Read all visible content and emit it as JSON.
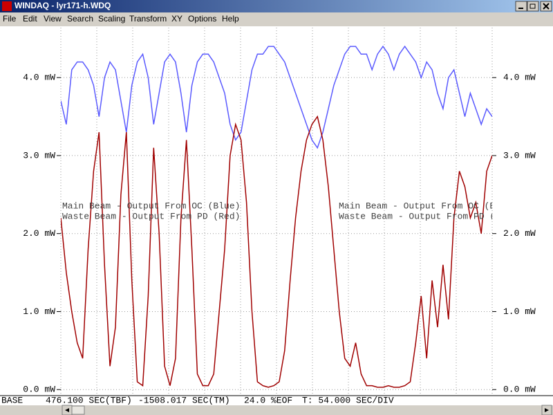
{
  "window": {
    "title": "WINDAQ - lyr171-h.WDQ"
  },
  "menu": [
    "File",
    "Edit",
    "View",
    "Search",
    "Scaling",
    "Transform",
    "XY",
    "Options",
    "Help"
  ],
  "chart_data": {
    "type": "line",
    "annotations": [
      "Main Beam - Output From OC (Blue)",
      "Waste Beam - Output From PD (Red)"
    ],
    "ylim": [
      -0.06,
      4.64
    ],
    "yticks": [
      {
        "value": 0,
        "label": "0.0 mW"
      },
      {
        "value": 1,
        "label": "1.0 mW"
      },
      {
        "value": 2,
        "label": "2.0 mW"
      },
      {
        "value": 3,
        "label": "3.0 mW"
      },
      {
        "value": 4,
        "label": "4.0 mW"
      }
    ],
    "grid": true,
    "series": [
      {
        "color": "#5a5aff",
        "values": [
          3.7,
          3.4,
          4.1,
          4.2,
          4.2,
          4.1,
          3.9,
          3.5,
          4.0,
          4.2,
          4.1,
          3.7,
          3.3,
          3.9,
          4.2,
          4.3,
          4.0,
          3.4,
          3.8,
          4.2,
          4.3,
          4.2,
          3.8,
          3.3,
          3.9,
          4.2,
          4.3,
          4.3,
          4.2,
          4.0,
          3.8,
          3.4,
          3.2,
          3.3,
          3.7,
          4.1,
          4.3,
          4.3,
          4.4,
          4.4,
          4.3,
          4.2,
          4.0,
          3.8,
          3.6,
          3.4,
          3.2,
          3.1,
          3.3,
          3.6,
          3.9,
          4.1,
          4.3,
          4.4,
          4.4,
          4.3,
          4.3,
          4.1,
          4.3,
          4.4,
          4.3,
          4.1,
          4.3,
          4.4,
          4.3,
          4.2,
          4.0,
          4.2,
          4.1,
          3.8,
          3.6,
          4.0,
          4.1,
          3.8,
          3.5,
          3.8,
          3.6,
          3.4,
          3.6,
          3.5
        ]
      },
      {
        "color": "#a00000",
        "values": [
          2.2,
          1.5,
          1.0,
          0.6,
          0.4,
          1.8,
          2.8,
          3.3,
          1.6,
          0.3,
          0.8,
          2.5,
          3.3,
          1.4,
          0.1,
          0.05,
          1.2,
          3.1,
          2.0,
          0.3,
          0.05,
          0.4,
          2.2,
          3.2,
          1.8,
          0.2,
          0.05,
          0.05,
          0.2,
          1.0,
          1.8,
          3.0,
          3.4,
          3.2,
          2.4,
          1.0,
          0.1,
          0.05,
          0.03,
          0.05,
          0.1,
          0.5,
          1.4,
          2.2,
          2.8,
          3.2,
          3.4,
          3.5,
          3.2,
          2.6,
          1.8,
          1.0,
          0.4,
          0.3,
          0.6,
          0.2,
          0.05,
          0.05,
          0.03,
          0.03,
          0.05,
          0.03,
          0.03,
          0.05,
          0.1,
          0.6,
          1.2,
          0.4,
          1.4,
          0.8,
          1.6,
          0.9,
          2.2,
          2.8,
          2.6,
          2.2,
          2.4,
          2.0,
          2.8,
          3.0
        ]
      }
    ]
  },
  "status": [
    "BASE",
    "476.100 SEC(TBF)",
    "-1508.017 SEC(TM)",
    "24.0 %EOF",
    "T: 54.000 SEC/DIV"
  ]
}
